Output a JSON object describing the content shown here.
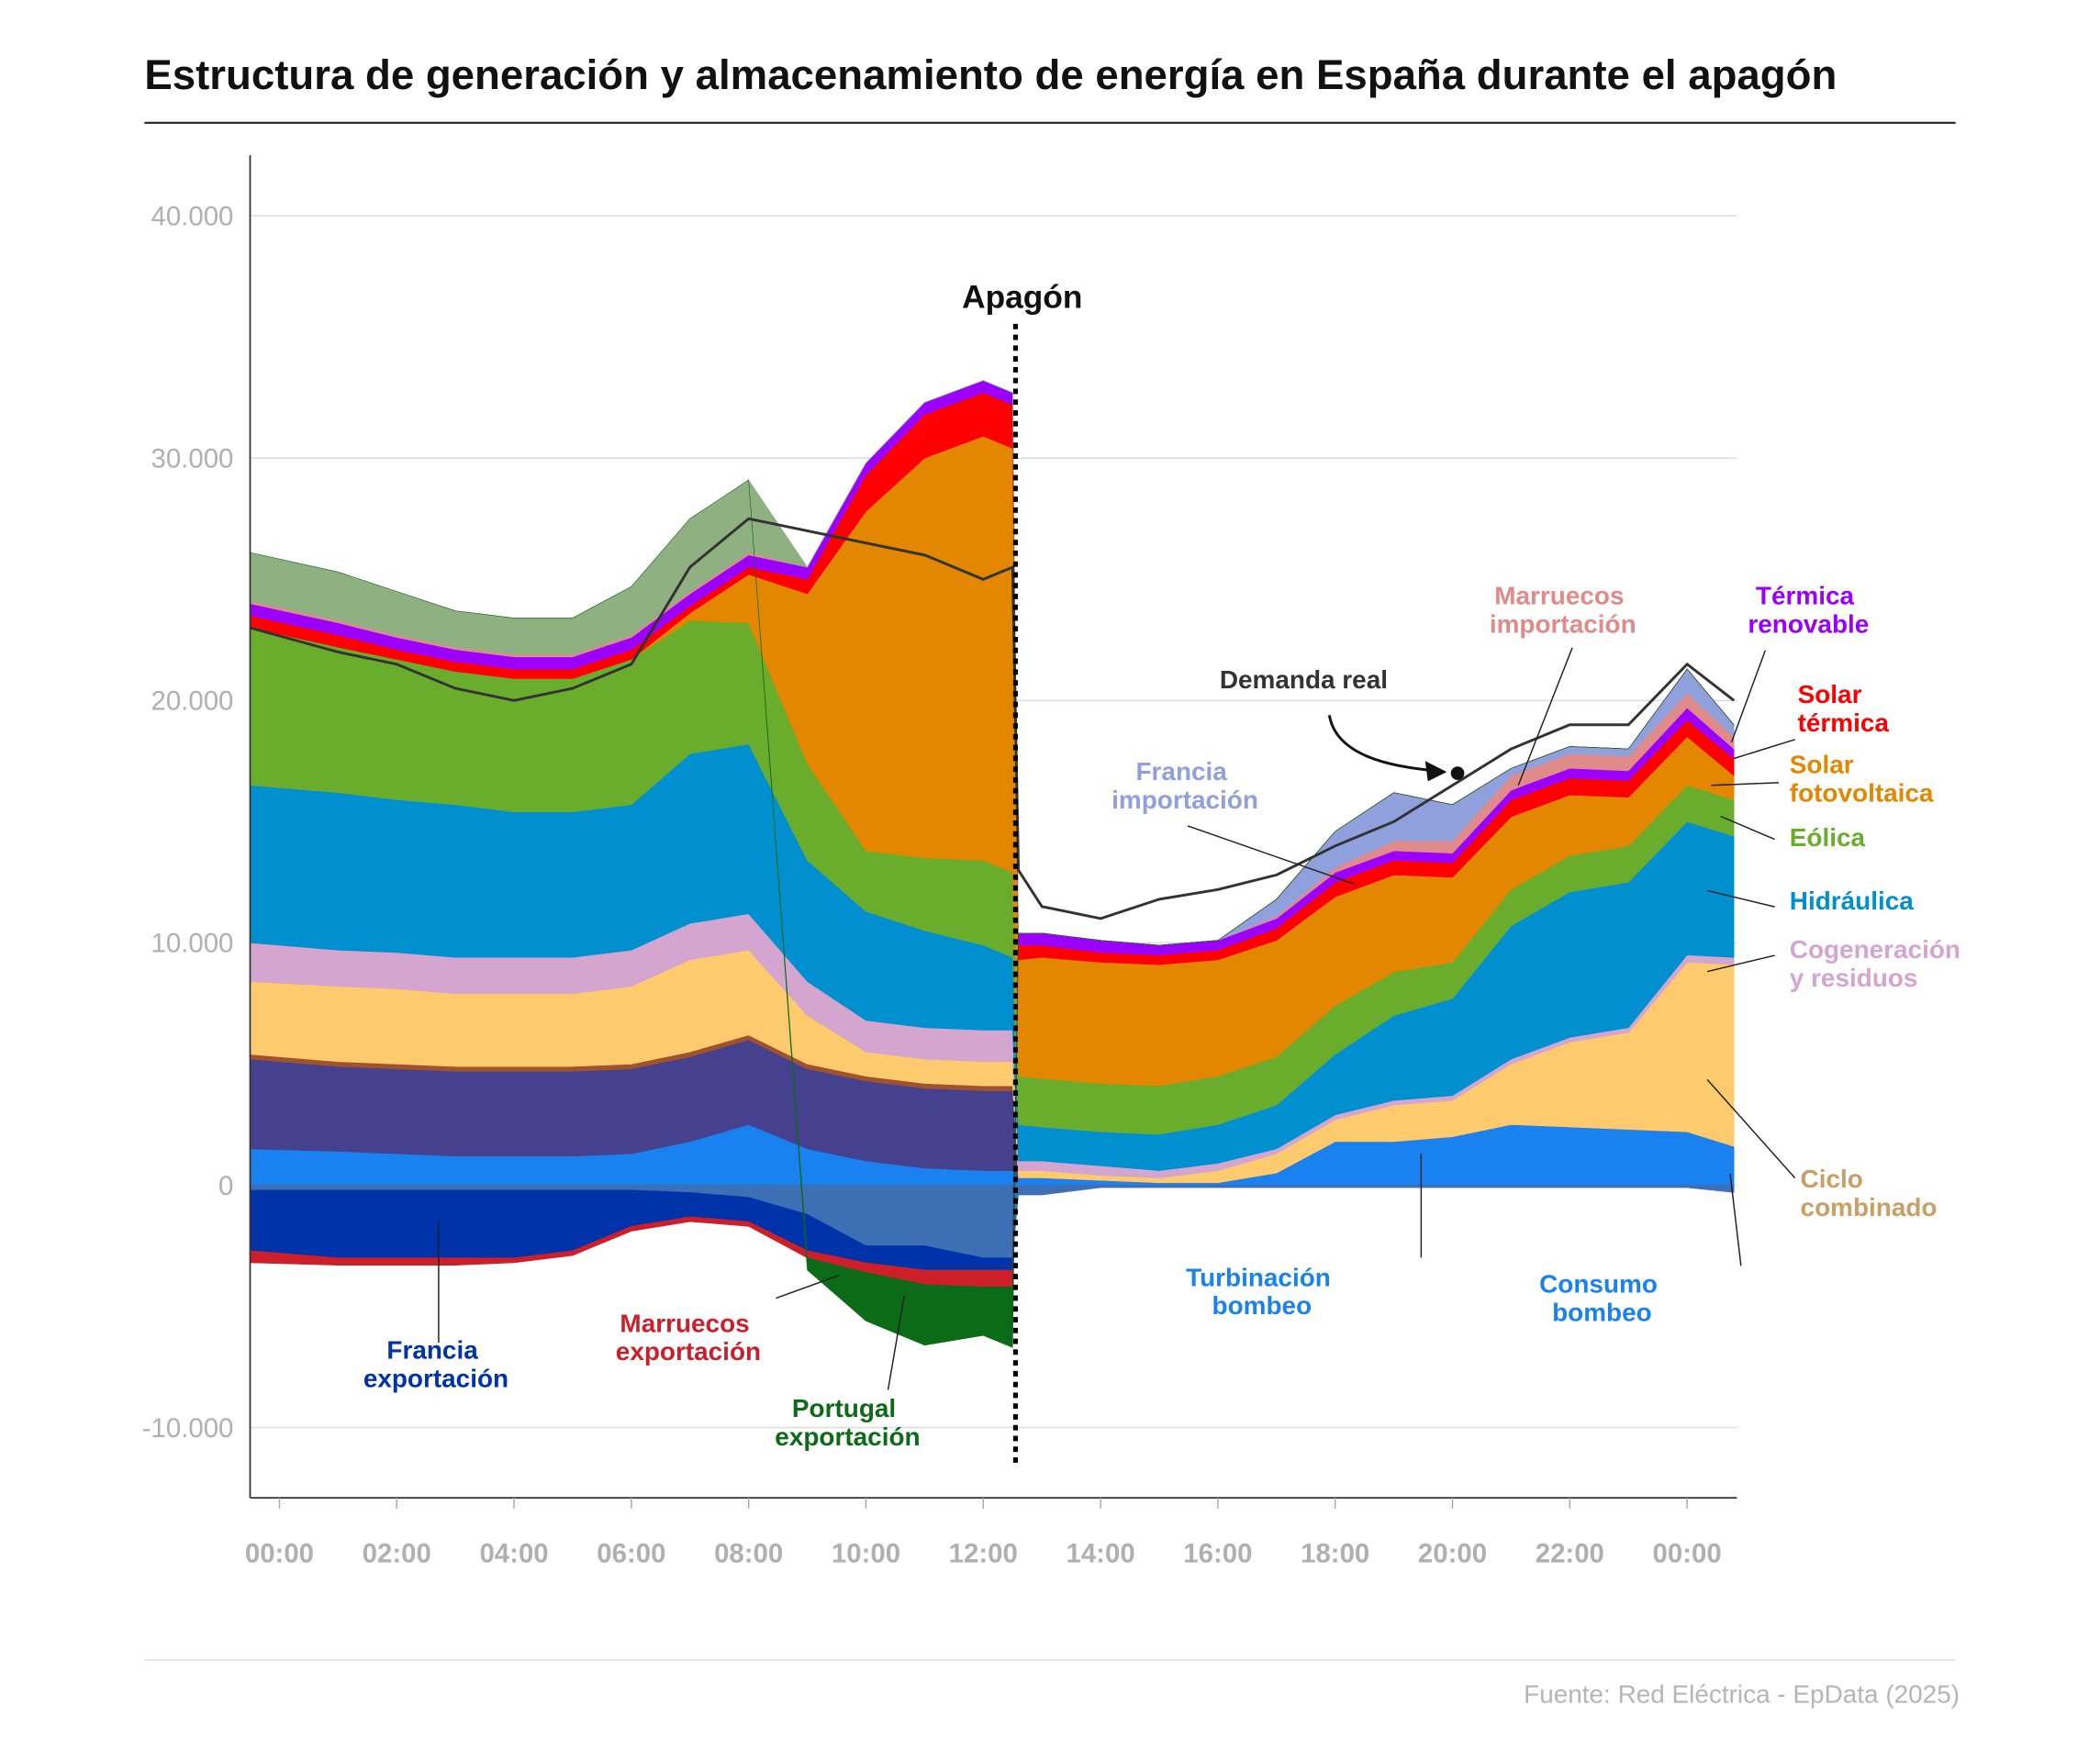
{
  "chart_data": {
    "type": "stacked_area",
    "title": "Estructura de generación y almacenamiento de energía en España durante el apagón",
    "annotation": "Apagón",
    "source": "Fuente: Red Eléctrica - EpData (2025)",
    "x": [
      -0.5,
      1,
      2,
      3,
      4,
      5,
      6,
      7,
      8,
      9,
      10,
      11,
      12,
      12.5,
      12.6,
      13,
      14,
      15,
      16,
      17,
      18,
      19,
      20,
      21,
      22,
      23,
      24,
      24.8
    ],
    "xlim": [
      -0.5,
      24.85
    ],
    "xticks": [
      {
        "value": 0,
        "label": "00:00"
      },
      {
        "value": 2,
        "label": "02:00"
      },
      {
        "value": 4,
        "label": "04:00"
      },
      {
        "value": 6,
        "label": "06:00"
      },
      {
        "value": 8,
        "label": "08:00"
      },
      {
        "value": 10,
        "label": "10:00"
      },
      {
        "value": 12,
        "label": "12:00"
      },
      {
        "value": 14,
        "label": "14:00"
      },
      {
        "value": 16,
        "label": "16:00"
      },
      {
        "value": 18,
        "label": "18:00"
      },
      {
        "value": 20,
        "label": "20:00"
      },
      {
        "value": 22,
        "label": "22:00"
      },
      {
        "value": 24,
        "label": "00:00"
      }
    ],
    "ylim": [
      -12900,
      42500
    ],
    "yticks": [
      {
        "value": -10000,
        "label": "-10.000"
      },
      0,
      {
        "value": 10000,
        "label": "10.000"
      },
      {
        "value": 20000,
        "label": "20.000"
      },
      {
        "value": 30000,
        "label": "30.000"
      },
      {
        "value": 40000,
        "label": "40.000"
      }
    ],
    "grid": true,
    "series": [
      {
        "name": "Turbinación bombeo",
        "color": "#1a82f0",
        "values": [
          1500,
          1400,
          1300,
          1200,
          1200,
          1200,
          1300,
          1800,
          2500,
          1500,
          1000,
          700,
          600,
          600,
          300,
          300,
          200,
          100,
          100,
          500,
          1800,
          1800,
          2000,
          2500,
          2400,
          2300,
          2200,
          1600
        ]
      },
      {
        "color": "#46418f",
        "values": [
          3700,
          3500,
          3500,
          3500,
          3500,
          3500,
          3500,
          3500,
          3500,
          3300,
          3300,
          3300,
          3300,
          3300,
          0,
          0,
          0,
          0,
          0,
          0,
          0,
          0,
          0,
          0,
          0,
          0,
          0,
          0
        ]
      },
      {
        "color": "#a0522d",
        "values": [
          200,
          200,
          200,
          200,
          200,
          200,
          200,
          200,
          200,
          200,
          200,
          200,
          200,
          200,
          0,
          0,
          0,
          0,
          0,
          0,
          0,
          0,
          0,
          0,
          0,
          0,
          0,
          0
        ]
      },
      {
        "name": "Ciclo combinado",
        "color": "#fdcb6e",
        "values": [
          3000,
          3100,
          3100,
          3000,
          3000,
          3000,
          3200,
          3800,
          3500,
          2000,
          1000,
          1000,
          1000,
          1000,
          300,
          300,
          200,
          200,
          500,
          800,
          900,
          1500,
          1500,
          2500,
          3500,
          4000,
          7000,
          7500
        ]
      },
      {
        "name": "Cogeneración y residuos",
        "color": "#d4a5cf",
        "values": [
          1600,
          1500,
          1500,
          1500,
          1500,
          1500,
          1500,
          1500,
          1500,
          1400,
          1300,
          1300,
          1300,
          1300,
          400,
          400,
          400,
          300,
          300,
          200,
          200,
          200,
          200,
          200,
          200,
          200,
          300,
          300
        ]
      },
      {
        "name": "Hidráulica",
        "color": "#0090d0",
        "values": [
          6500,
          6500,
          6300,
          6300,
          6000,
          6000,
          6000,
          7000,
          7000,
          5000,
          4500,
          4000,
          3500,
          3000,
          1500,
          1400,
          1400,
          1500,
          1600,
          1800,
          2500,
          3500,
          4000,
          5500,
          6000,
          6000,
          5500,
          5000
        ]
      },
      {
        "name": "Eólica",
        "color": "#6aad2c",
        "values": [
          6500,
          6000,
          5800,
          5500,
          5500,
          5500,
          6000,
          5500,
          5000,
          4000,
          2500,
          3000,
          3500,
          3500,
          2000,
          2000,
          2000,
          2000,
          2000,
          2000,
          2000,
          1800,
          1500,
          1500,
          1500,
          1500,
          1500,
          1500
        ]
      },
      {
        "name": "Solar fotovoltaica",
        "color": "#e38600",
        "values": [
          0,
          0,
          0,
          0,
          0,
          0,
          0,
          300,
          2000,
          7000,
          14000,
          16500,
          17500,
          17500,
          4800,
          5000,
          5000,
          5000,
          4800,
          4800,
          4500,
          4000,
          3500,
          3000,
          2500,
          2000,
          2000,
          1000
        ]
      },
      {
        "name": "Solar térmica",
        "color": "#ff0000",
        "values": [
          500,
          500,
          400,
          400,
          400,
          400,
          400,
          300,
          300,
          600,
          1500,
          1800,
          1800,
          1800,
          600,
          500,
          400,
          400,
          400,
          500,
          600,
          600,
          600,
          700,
          700,
          700,
          700,
          700
        ]
      },
      {
        "name": "Térmica renovable",
        "color": "#9b00ff",
        "values": [
          500,
          500,
          500,
          500,
          500,
          500,
          500,
          500,
          500,
          500,
          500,
          500,
          500,
          500,
          500,
          500,
          500,
          400,
          400,
          400,
          400,
          400,
          400,
          400,
          400,
          400,
          500,
          400
        ]
      },
      {
        "name": "Marruecos importación",
        "color": "#e08a8a",
        "values": [
          100,
          100,
          100,
          100,
          100,
          100,
          100,
          100,
          100,
          0,
          0,
          0,
          0,
          0,
          0,
          0,
          0,
          0,
          0,
          100,
          200,
          400,
          500,
          600,
          600,
          600,
          600,
          500
        ]
      },
      {
        "name": "Francia importación",
        "color": "#8fa0dc",
        "values": [
          0,
          0,
          0,
          0,
          0,
          0,
          0,
          0,
          0,
          0,
          0,
          0,
          0,
          0,
          0,
          0,
          0,
          0,
          0,
          700,
          1500,
          2000,
          1500,
          300,
          300,
          300,
          1000,
          500
        ]
      },
      {
        "color": "#8fb080",
        "values": [
          2000,
          2000,
          1800,
          1500,
          1500,
          1500,
          2000,
          3000,
          3000,
          0,
          0,
          0,
          0,
          0,
          0,
          0,
          0,
          0,
          0,
          0,
          0,
          0,
          0,
          0,
          0,
          0,
          0,
          0
        ]
      },
      {
        "name": "Consumo bombeo",
        "color": "#3d6fb5",
        "values": [
          -200,
          -200,
          -200,
          -200,
          -200,
          -200,
          -200,
          -300,
          -500,
          -1200,
          -2500,
          -2500,
          -3000,
          -3000,
          -400,
          -400,
          -100,
          -100,
          -100,
          -100,
          -100,
          -100,
          -100,
          -100,
          -100,
          -100,
          -100,
          -300
        ]
      },
      {
        "name": "Francia exportación",
        "color": "#0033aa",
        "values": [
          -2500,
          -2800,
          -2800,
          -2800,
          -2800,
          -2500,
          -1500,
          -1000,
          -1000,
          -1500,
          -700,
          -1000,
          -500,
          -500,
          0,
          0,
          0,
          0,
          0,
          0,
          0,
          0,
          0,
          0,
          0,
          0,
          0,
          0
        ]
      },
      {
        "name": "Marruecos exportación",
        "color": "#cc1f2a",
        "values": [
          -500,
          -300,
          -300,
          -300,
          -200,
          -200,
          -200,
          -200,
          -200,
          -300,
          -400,
          -600,
          -700,
          -700,
          0,
          0,
          0,
          0,
          0,
          0,
          0,
          0,
          0,
          0,
          0,
          0,
          0,
          0
        ]
      },
      {
        "name": "Portugal exportación",
        "color": "#0b6b16",
        "values": [
          0,
          0,
          0,
          0,
          0,
          0,
          0,
          0,
          0,
          -500,
          -2000,
          -2500,
          -2000,
          -2500,
          0,
          0,
          0,
          0,
          0,
          0,
          0,
          0,
          0,
          0,
          0,
          0,
          0,
          0
        ]
      },
      {
        "name": "Demanda real",
        "color": "#333333",
        "type": "line",
        "values": [
          23000,
          22000,
          21500,
          20500,
          20000,
          20500,
          21500,
          25500,
          27500,
          27000,
          26500,
          26000,
          25000,
          25500,
          13000,
          11500,
          11000,
          11800,
          12200,
          12800,
          14000,
          15000,
          16500,
          18000,
          19000,
          19000,
          21500,
          20000
        ]
      }
    ]
  }
}
